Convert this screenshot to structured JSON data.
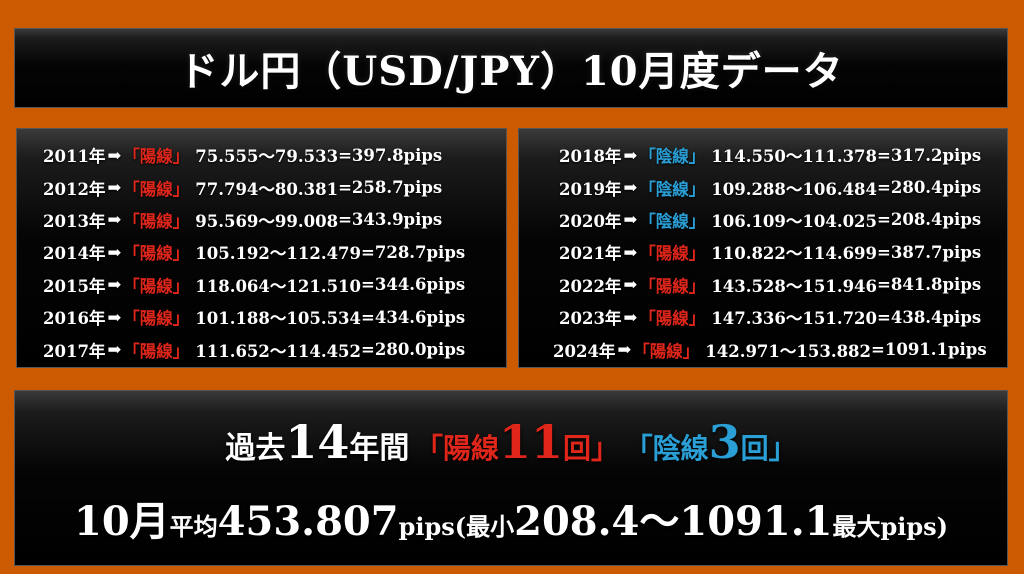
{
  "title": "ドル円（USD/JPY）10月度データ",
  "colors": {
    "bull": "#e0261a",
    "bear": "#2a9fd6",
    "background": "#cc5a00"
  },
  "left_rows": [
    {
      "year": "2011年",
      "arrow": "➡",
      "tag": "「陽線」",
      "range": "75.555～79.533",
      "pips": "=397.8pips",
      "type": "bull"
    },
    {
      "year": "2012年",
      "arrow": "➡",
      "tag": "「陽線」",
      "range": "77.794～80.381",
      "pips": "=258.7pips",
      "type": "bull"
    },
    {
      "year": "2013年",
      "arrow": "➡",
      "tag": "「陽線」",
      "range": "95.569～99.008",
      "pips": "=343.9pips",
      "type": "bull"
    },
    {
      "year": "2014年",
      "arrow": "➡",
      "tag": "「陽線」",
      "range": "105.192～112.479",
      "pips": "=728.7pips",
      "type": "bull"
    },
    {
      "year": "2015年",
      "arrow": "➡",
      "tag": "「陽線」",
      "range": "118.064～121.510",
      "pips": "=344.6pips",
      "type": "bull"
    },
    {
      "year": "2016年",
      "arrow": "➡",
      "tag": "「陽線」",
      "range": "101.188～105.534",
      "pips": "=434.6pips",
      "type": "bull"
    },
    {
      "year": "2017年",
      "arrow": "➡",
      "tag": "「陽線」",
      "range": "111.652～114.452",
      "pips": "=280.0pips",
      "type": "bull"
    }
  ],
  "right_rows": [
    {
      "year": "2018年",
      "arrow": "➡",
      "tag": "「陰線」",
      "range": "114.550～111.378",
      "pips": "=317.2pips",
      "type": "bear"
    },
    {
      "year": "2019年",
      "arrow": "➡",
      "tag": "「陰線」",
      "range": "109.288～106.484",
      "pips": "=280.4pips",
      "type": "bear"
    },
    {
      "year": "2020年",
      "arrow": "➡",
      "tag": "「陰線」",
      "range": "106.109～104.025",
      "pips": "=208.4pips",
      "type": "bear"
    },
    {
      "year": "2021年",
      "arrow": "➡",
      "tag": "「陽線」",
      "range": "110.822～114.699",
      "pips": "=387.7pips",
      "type": "bull"
    },
    {
      "year": "2022年",
      "arrow": "➡",
      "tag": "「陽線」",
      "range": "143.528～151.946",
      "pips": "=841.8pips",
      "type": "bull"
    },
    {
      "year": "2023年",
      "arrow": "➡",
      "tag": "「陽線」",
      "range": "147.336～151.720",
      "pips": "=438.4pips",
      "type": "bull"
    },
    {
      "year": "2024年",
      "arrow": "➡",
      "tag": "「陽線」",
      "range": "142.971～153.882",
      "pips": "=1091.1pips",
      "type": "bull"
    }
  ],
  "summary": {
    "past_prefix": "過去",
    "years_num": "14",
    "years_suffix": "年間",
    "bull_open": "「陽線",
    "bull_count": "11",
    "bull_close": "回」",
    "bear_open": "「陰線",
    "bear_count": "3",
    "bear_close": "回」",
    "month": "10月",
    "avg_label": "平均",
    "avg_value": "453.807",
    "avg_unit": "pips(最小",
    "min_value": "208.4～1091.1",
    "max_label": "最大pips)"
  }
}
